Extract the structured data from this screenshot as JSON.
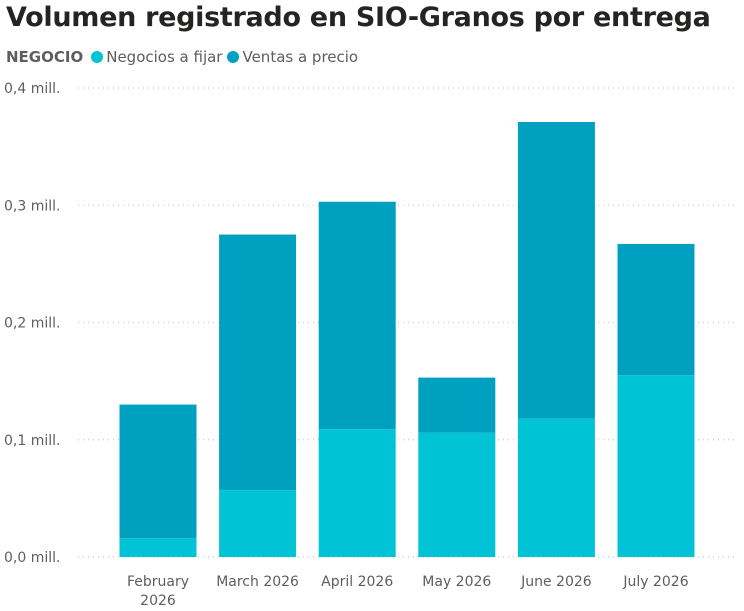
{
  "chart_data": {
    "type": "bar",
    "stacked": true,
    "title": "Volumen registrado en SIO-Granos por entrega",
    "legend_title": "NEGOCIO",
    "legend_placement": "top-left",
    "categories": [
      "February 2026",
      "March 2026",
      "April 2026",
      "May 2026",
      "June 2026",
      "July 2026"
    ],
    "series": [
      {
        "name": "Negocios a fijar",
        "color": "#00C3D6",
        "values": [
          0.016,
          0.057,
          0.109,
          0.106,
          0.118,
          0.155
        ]
      },
      {
        "name": "Ventas a precio",
        "color": "#00A0C0",
        "values": [
          0.114,
          0.218,
          0.194,
          0.047,
          0.253,
          0.112
        ]
      }
    ],
    "ylim": [
      0,
      0.4
    ],
    "yticks": [
      0,
      0.1,
      0.2,
      0.3,
      0.4
    ],
    "ytick_labels": [
      "0,0 mill.",
      "0,1 mill.",
      "0,2 mill.",
      "0,3 mill.",
      "0,4 mill."
    ],
    "grid": true,
    "xlabel": "",
    "ylabel": ""
  }
}
